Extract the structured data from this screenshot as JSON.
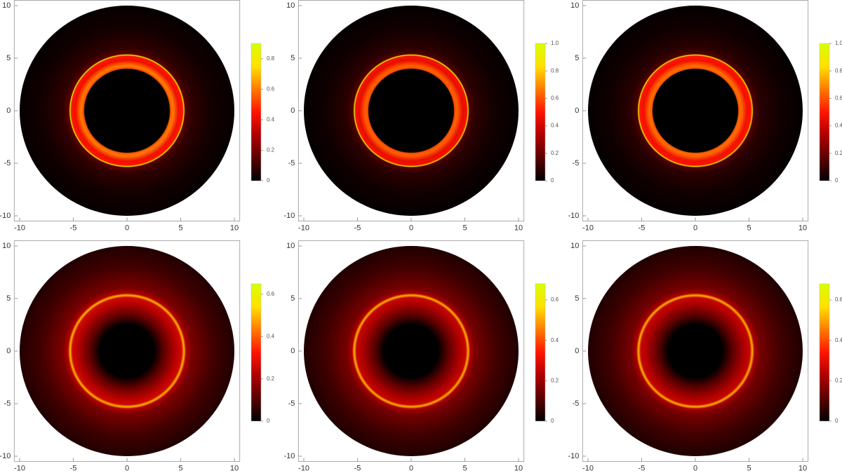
{
  "chart_data": [
    {
      "type": "radial_image",
      "xlim": [
        -10.5,
        10.5
      ],
      "ylim": [
        -10.5,
        10.5
      ],
      "xticks": [
        -10,
        -5,
        0,
        5,
        10
      ],
      "yticks": [
        -10,
        -5,
        0,
        5,
        10
      ],
      "clim": [
        0,
        0.9
      ],
      "cticks": [
        0,
        0.2,
        0.4,
        0.6,
        0.8
      ],
      "colormap": [
        "#000000",
        "#5a0000",
        "#b00000",
        "#ff1400",
        "#ff7a00",
        "#ffe000",
        "#d8ff00"
      ],
      "radial_profile": {
        "r": [
          0,
          3.95,
          4.05,
          4.3,
          4.8,
          5.2,
          5.3,
          5.4,
          6,
          8,
          10
        ],
        "intensity": [
          0,
          0,
          0.55,
          0.6,
          0.42,
          0.45,
          0.85,
          0.15,
          0.08,
          0.03,
          0.01
        ]
      }
    },
    {
      "type": "radial_image",
      "xlim": [
        -10.5,
        10.5
      ],
      "ylim": [
        -10.5,
        10.5
      ],
      "xticks": [
        -10,
        -5,
        0,
        5,
        10
      ],
      "yticks": [
        -10,
        -5,
        0,
        5,
        10
      ],
      "clim": [
        0,
        1
      ],
      "cticks": [
        0,
        0.2,
        0.4,
        0.6,
        0.8,
        {
          "value": 1,
          "label": "1.0"
        }
      ],
      "colormap": [
        "#000000",
        "#5a0000",
        "#b00000",
        "#ff1400",
        "#ff7a00",
        "#ffe000",
        "#d8ff00"
      ],
      "radial_profile": {
        "r": [
          0,
          3.95,
          4.05,
          4.3,
          4.8,
          5.2,
          5.3,
          5.4,
          6,
          8,
          10
        ],
        "intensity": [
          0,
          0,
          0.6,
          0.62,
          0.45,
          0.48,
          0.9,
          0.15,
          0.08,
          0.03,
          0.01
        ]
      }
    },
    {
      "type": "radial_image",
      "xlim": [
        -10.5,
        10.5
      ],
      "ylim": [
        -10.5,
        10.5
      ],
      "xticks": [
        -10,
        -5,
        0,
        5,
        10
      ],
      "yticks": [
        -10,
        -5,
        0,
        5,
        10
      ],
      "clim": [
        0,
        1
      ],
      "cticks": [
        0,
        0.2,
        0.4,
        0.6,
        0.8,
        {
          "value": 1,
          "label": "1.0"
        }
      ],
      "colormap": [
        "#000000",
        "#5a0000",
        "#b00000",
        "#ff1400",
        "#ff7a00",
        "#ffe000",
        "#d8ff00"
      ],
      "radial_profile": {
        "r": [
          0,
          3.95,
          4.05,
          4.3,
          4.8,
          5.2,
          5.3,
          5.4,
          6,
          8,
          10
        ],
        "intensity": [
          0,
          0,
          0.62,
          0.64,
          0.47,
          0.5,
          0.9,
          0.15,
          0.08,
          0.03,
          0.01
        ]
      }
    },
    {
      "type": "radial_image",
      "xlim": [
        -10.5,
        10.5
      ],
      "ylim": [
        -10.5,
        10.5
      ],
      "xticks": [
        -10,
        -5,
        0,
        5,
        10
      ],
      "yticks": [
        -10,
        -5,
        0,
        5,
        10
      ],
      "clim": [
        0,
        0.65
      ],
      "cticks": [
        0,
        0.2,
        0.4,
        0.6
      ],
      "colormap": [
        "#000000",
        "#5a0000",
        "#b00000",
        "#ff1400",
        "#ff7a00",
        "#ffe000",
        "#d8ff00"
      ],
      "radial_profile": {
        "r": [
          0,
          2.5,
          3.5,
          4.5,
          5.1,
          5.3,
          5.5,
          6,
          8,
          10
        ],
        "intensity": [
          0,
          0,
          0.12,
          0.22,
          0.26,
          0.5,
          0.22,
          0.15,
          0.08,
          0.04
        ]
      }
    },
    {
      "type": "radial_image",
      "xlim": [
        -10.5,
        10.5
      ],
      "ylim": [
        -10.5,
        10.5
      ],
      "xticks": [
        -10,
        -5,
        0,
        5,
        10
      ],
      "yticks": [
        -10,
        -5,
        0,
        5,
        10
      ],
      "clim": [
        0,
        0.68
      ],
      "cticks": [
        0,
        0.2,
        0.4,
        0.6
      ],
      "colormap": [
        "#000000",
        "#5a0000",
        "#b00000",
        "#ff1400",
        "#ff7a00",
        "#ffe000",
        "#d8ff00"
      ],
      "radial_profile": {
        "r": [
          0,
          2.5,
          3.5,
          4.5,
          5.1,
          5.3,
          5.5,
          6,
          8,
          10
        ],
        "intensity": [
          0,
          0,
          0.12,
          0.22,
          0.26,
          0.52,
          0.22,
          0.15,
          0.08,
          0.04
        ]
      }
    },
    {
      "type": "radial_image",
      "xlim": [
        -10.5,
        10.5
      ],
      "ylim": [
        -10.5,
        10.5
      ],
      "xticks": [
        -10,
        -5,
        0,
        5,
        10
      ],
      "yticks": [
        -10,
        -5,
        0,
        5,
        10
      ],
      "clim": [
        0,
        0.68
      ],
      "cticks": [
        0,
        0.2,
        0.4,
        0.6
      ],
      "colormap": [
        "#000000",
        "#5a0000",
        "#b00000",
        "#ff1400",
        "#ff7a00",
        "#ffe000",
        "#d8ff00"
      ],
      "radial_profile": {
        "r": [
          0,
          2.5,
          3.5,
          4.5,
          5.1,
          5.3,
          5.5,
          6,
          8,
          10
        ],
        "intensity": [
          0,
          0,
          0.12,
          0.22,
          0.26,
          0.52,
          0.22,
          0.15,
          0.08,
          0.04
        ]
      }
    }
  ]
}
